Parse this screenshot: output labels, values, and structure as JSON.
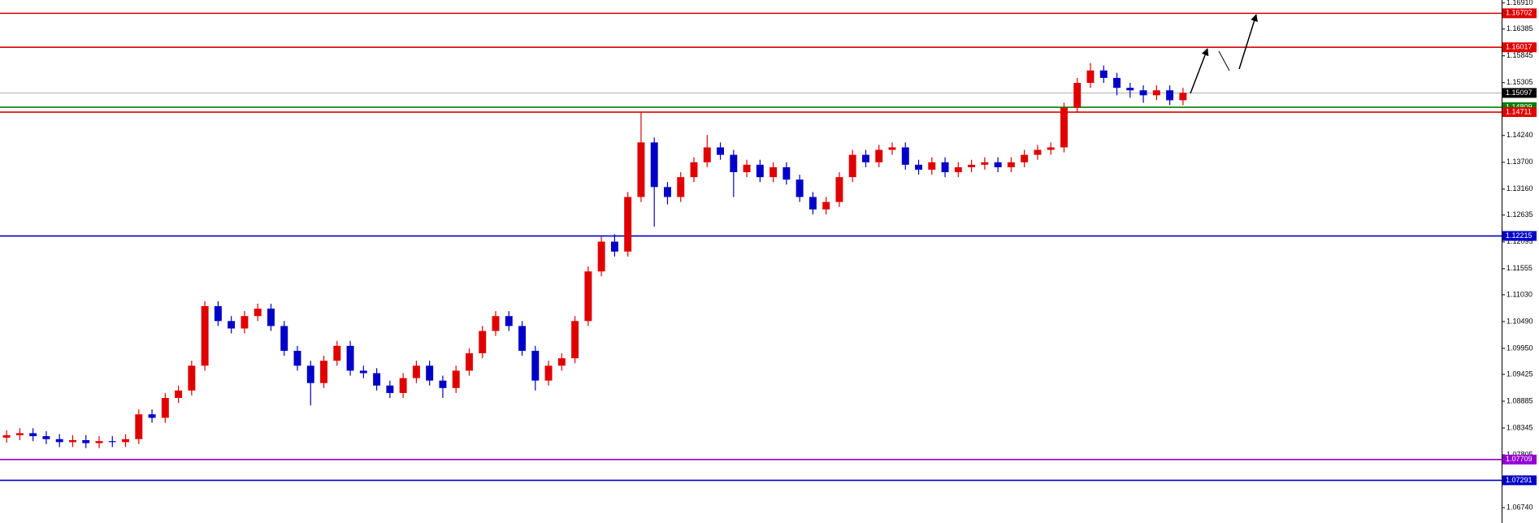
{
  "chart_data": {
    "type": "candlestick",
    "up_color": "#e00000",
    "down_color": "#0000c8",
    "ylim": [
      1.0643,
      1.1697
    ],
    "yticks": [
      {
        "value": 1.1691,
        "label": "1.16910"
      },
      1.16385,
      1.15845,
      1.15305,
      {
        "value": 1.1424,
        "label": "1.14240"
      },
      {
        "value": 1.137,
        "label": "1.13700"
      },
      {
        "value": 1.1316,
        "label": "1.13160"
      },
      1.12635,
      1.12095,
      1.11555,
      {
        "value": 1.1103,
        "label": "1.11030"
      },
      {
        "value": 1.1049,
        "label": "1.10490"
      },
      {
        "value": 1.0995,
        "label": "1.09950"
      },
      1.09425,
      1.08885,
      1.08345,
      1.07805,
      {
        "value": 1.0674,
        "label": "1.06740"
      }
    ],
    "levels": [
      {
        "value": 1.16702,
        "color": "#e00000"
      },
      {
        "value": 1.16017,
        "color": "#e00000"
      },
      {
        "value": 1.15097,
        "color": "#000000"
      },
      {
        "value": 1.14809,
        "color": "#008000"
      },
      {
        "value": 1.14711,
        "color": "#e00000"
      },
      {
        "value": 1.12215,
        "color": "#0000c8"
      },
      {
        "value": 1.07709,
        "color": "#9400d3"
      },
      {
        "value": 1.07291,
        "color": "#0000c8"
      }
    ],
    "candles": [
      [
        1.0815,
        1.083,
        1.0805,
        1.082
      ],
      [
        1.082,
        1.0834,
        1.081,
        1.0824
      ],
      [
        1.0824,
        1.0834,
        1.0808,
        1.0818
      ],
      [
        1.0818,
        1.0828,
        1.0802,
        1.0812
      ],
      [
        1.0812,
        1.0822,
        1.0796,
        1.0806
      ],
      [
        1.0806,
        1.082,
        1.0796,
        1.081
      ],
      [
        1.081,
        1.082,
        1.0794,
        1.0804
      ],
      [
        1.0804,
        1.0818,
        1.0794,
        1.0808
      ],
      [
        1.0808,
        1.0818,
        1.0796,
        1.0806
      ],
      [
        1.0806,
        1.0822,
        1.0796,
        1.0812
      ],
      [
        1.0812,
        1.0872,
        1.0802,
        1.0862
      ],
      [
        1.0862,
        1.0872,
        1.0845,
        1.0855
      ],
      [
        1.0855,
        1.0905,
        1.0845,
        1.0895
      ],
      [
        1.0895,
        1.092,
        1.0885,
        1.091
      ],
      [
        1.091,
        1.097,
        1.09,
        1.096
      ],
      [
        1.096,
        1.109,
        1.095,
        1.108
      ],
      [
        1.108,
        1.109,
        1.104,
        1.105
      ],
      [
        1.105,
        1.106,
        1.1025,
        1.1035
      ],
      [
        1.1035,
        1.107,
        1.1025,
        1.106
      ],
      [
        1.106,
        1.1085,
        1.105,
        1.1075
      ],
      [
        1.1075,
        1.1085,
        1.103,
        1.104
      ],
      [
        1.104,
        1.105,
        1.098,
        1.099
      ],
      [
        1.099,
        1.1,
        1.095,
        1.096
      ],
      [
        1.096,
        1.097,
        1.088,
        1.0925
      ],
      [
        1.0925,
        1.098,
        1.0915,
        1.097
      ],
      [
        1.097,
        1.101,
        1.096,
        1.1
      ],
      [
        1.1,
        1.101,
        1.094,
        1.095
      ],
      [
        1.095,
        1.096,
        1.0935,
        1.0945
      ],
      [
        1.0945,
        1.0955,
        1.091,
        1.092
      ],
      [
        1.092,
        1.093,
        1.0895,
        1.0905
      ],
      [
        1.0905,
        1.0945,
        1.0895,
        1.0935
      ],
      [
        1.0935,
        1.097,
        1.0925,
        1.096
      ],
      [
        1.096,
        1.097,
        1.092,
        1.093
      ],
      [
        1.093,
        1.094,
        1.0895,
        1.0915
      ],
      [
        1.0915,
        1.096,
        1.0905,
        1.095
      ],
      [
        1.095,
        1.0995,
        1.094,
        1.0985
      ],
      [
        1.0985,
        1.104,
        1.0975,
        1.103
      ],
      [
        1.103,
        1.107,
        1.102,
        1.106
      ],
      [
        1.106,
        1.107,
        1.103,
        1.104
      ],
      [
        1.104,
        1.105,
        1.098,
        1.099
      ],
      [
        1.099,
        1.1,
        1.091,
        1.093
      ],
      [
        1.093,
        1.097,
        1.092,
        1.096
      ],
      [
        1.096,
        1.0985,
        1.095,
        1.0975
      ],
      [
        1.0975,
        1.106,
        1.0965,
        1.105
      ],
      [
        1.105,
        1.116,
        1.104,
        1.115
      ],
      [
        1.115,
        1.122,
        1.114,
        1.121
      ],
      [
        1.121,
        1.1225,
        1.118,
        1.119
      ],
      [
        1.119,
        1.131,
        1.118,
        1.13
      ],
      [
        1.13,
        1.147,
        1.129,
        1.141
      ],
      [
        1.141,
        1.142,
        1.124,
        1.132
      ],
      [
        1.132,
        1.133,
        1.1285,
        1.13
      ],
      [
        1.13,
        1.135,
        1.129,
        1.134
      ],
      [
        1.134,
        1.138,
        1.133,
        1.137
      ],
      [
        1.137,
        1.1425,
        1.136,
        1.14
      ],
      [
        1.14,
        1.141,
        1.1375,
        1.1385
      ],
      [
        1.1385,
        1.1395,
        1.13,
        1.135
      ],
      [
        1.135,
        1.1375,
        1.134,
        1.1365
      ],
      [
        1.1365,
        1.1375,
        1.133,
        1.134
      ],
      [
        1.134,
        1.137,
        1.133,
        1.136
      ],
      [
        1.136,
        1.137,
        1.1325,
        1.1335
      ],
      [
        1.1335,
        1.1345,
        1.129,
        1.13
      ],
      [
        1.13,
        1.131,
        1.1265,
        1.1275
      ],
      [
        1.1275,
        1.13,
        1.1265,
        1.129
      ],
      [
        1.129,
        1.135,
        1.128,
        1.134
      ],
      [
        1.134,
        1.1395,
        1.133,
        1.1385
      ],
      [
        1.1385,
        1.1395,
        1.136,
        1.137
      ],
      [
        1.137,
        1.1405,
        1.136,
        1.1395
      ],
      [
        1.1395,
        1.141,
        1.1385,
        1.14
      ],
      [
        1.14,
        1.141,
        1.1355,
        1.1365
      ],
      [
        1.1365,
        1.1375,
        1.1345,
        1.1355
      ],
      [
        1.1355,
        1.138,
        1.1345,
        1.137
      ],
      [
        1.137,
        1.138,
        1.134,
        1.135
      ],
      [
        1.135,
        1.137,
        1.134,
        1.136
      ],
      [
        1.136,
        1.1375,
        1.135,
        1.1365
      ],
      [
        1.1365,
        1.138,
        1.1355,
        1.137
      ],
      [
        1.137,
        1.138,
        1.135,
        1.136
      ],
      [
        1.136,
        1.138,
        1.135,
        1.137
      ],
      [
        1.137,
        1.1395,
        1.136,
        1.1385
      ],
      [
        1.1385,
        1.1405,
        1.1375,
        1.1395
      ],
      [
        1.1395,
        1.141,
        1.1385,
        1.14
      ],
      [
        1.14,
        1.149,
        1.139,
        1.148
      ],
      [
        1.148,
        1.154,
        1.147,
        1.153
      ],
      [
        1.153,
        1.157,
        1.152,
        1.1555
      ],
      [
        1.1555,
        1.1565,
        1.153,
        1.154
      ],
      [
        1.154,
        1.155,
        1.1505,
        1.152
      ],
      [
        1.152,
        1.153,
        1.15,
        1.1515
      ],
      [
        1.1515,
        1.1525,
        1.149,
        1.1505
      ],
      [
        1.1505,
        1.1525,
        1.1495,
        1.1515
      ],
      [
        1.1515,
        1.1525,
        1.1485,
        1.1495
      ],
      [
        1.1495,
        1.152,
        1.1485,
        1.151
      ]
    ]
  }
}
